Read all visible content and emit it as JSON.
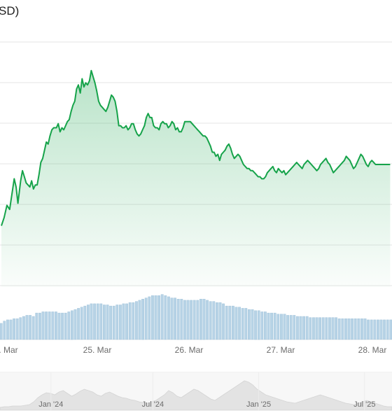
{
  "chart_data": {
    "type": "area",
    "title": "SD)",
    "accent_color": "#16a34a",
    "volume_color": "#b7d3e6",
    "navigator_color": "#e3e3e3",
    "grid": true,
    "x_tick_labels": [
      ". Mar",
      "25. Mar",
      "26. Mar",
      "27. Mar",
      "28. Mar"
    ],
    "x_tick_days": [
      0,
      1,
      2,
      3,
      4
    ],
    "y_range": [
      40,
      160
    ],
    "series": [
      {
        "x": [
          0.0,
          0.03,
          0.06,
          0.09,
          0.12,
          0.14,
          0.16,
          0.18,
          0.21,
          0.23,
          0.25,
          0.27,
          0.29,
          0.31,
          0.33,
          0.35,
          0.37,
          0.39,
          0.41,
          0.43,
          0.45,
          0.47,
          0.49,
          0.51,
          0.53,
          0.55,
          0.57,
          0.6,
          0.62,
          0.64,
          0.66,
          0.68,
          0.7,
          0.72,
          0.74,
          0.76,
          0.78,
          0.8,
          0.82,
          0.84,
          0.86,
          0.88,
          0.9,
          0.92,
          0.94,
          0.96,
          0.98,
          1.0,
          1.02,
          1.04,
          1.06,
          1.08,
          1.1,
          1.12,
          1.14,
          1.16,
          1.18,
          1.2,
          1.22,
          1.24,
          1.26,
          1.28,
          1.3,
          1.32,
          1.34,
          1.36,
          1.38,
          1.4,
          1.42,
          1.44,
          1.46,
          1.48,
          1.5,
          1.52,
          1.54,
          1.56,
          1.58,
          1.6,
          1.62,
          1.64,
          1.66,
          1.68,
          1.7,
          1.72,
          1.74,
          1.76,
          1.78,
          1.8,
          1.82,
          1.84,
          1.86,
          1.88,
          1.9,
          1.92,
          1.94,
          1.96,
          1.98,
          2.0,
          2.02,
          2.04,
          2.06,
          2.08,
          2.1,
          2.12,
          2.14,
          2.16,
          2.18,
          2.2,
          2.22,
          2.24,
          2.26,
          2.28,
          2.3,
          2.32,
          2.34,
          2.36,
          2.38,
          2.4,
          2.42,
          2.44,
          2.46,
          2.48,
          2.5,
          2.52,
          2.54,
          2.56,
          2.58,
          2.6,
          2.62,
          2.64,
          2.66,
          2.68,
          2.7,
          2.72,
          2.74,
          2.76,
          2.78,
          2.8,
          2.82,
          2.84,
          2.86,
          2.88,
          2.9,
          2.92,
          2.94,
          2.96,
          2.98,
          3.0,
          3.02,
          3.04,
          3.06,
          3.08,
          3.1,
          3.12,
          3.14,
          3.16,
          3.18,
          3.2,
          3.22,
          3.24,
          3.26,
          3.28,
          3.3,
          3.32,
          3.34,
          3.36,
          3.38,
          3.4,
          3.42,
          3.44,
          3.46,
          3.48,
          3.5,
          3.52,
          3.54,
          3.56,
          3.58,
          3.6,
          3.62,
          3.64,
          3.66,
          3.68,
          3.7,
          3.72,
          3.74,
          3.76,
          3.78,
          3.8,
          3.82,
          3.84,
          3.86,
          3.88,
          3.9,
          3.92,
          3.94,
          3.96,
          3.98,
          4.0,
          4.02,
          4.04,
          4.06,
          4.08,
          4.1,
          4.12,
          4.14,
          4.16,
          4.18,
          4.2,
          4.22,
          4.24
        ],
        "y": [
          70,
          74,
          80,
          78,
          87,
          93,
          89,
          81,
          92,
          97,
          94,
          91,
          90,
          89,
          92,
          88,
          90,
          90,
          95,
          101,
          103,
          107,
          111,
          110,
          114,
          117,
          118,
          118,
          120,
          116,
          118,
          117,
          119,
          121,
          122,
          126,
          129,
          131,
          137,
          139,
          135,
          142,
          138,
          140,
          139,
          141,
          146,
          143,
          140,
          136,
          131,
          129,
          128,
          127,
          126,
          128,
          131,
          134,
          133,
          131,
          126,
          119,
          119,
          118,
          118,
          119,
          117,
          118,
          120,
          120,
          117,
          115,
          114,
          115,
          117,
          119,
          123,
          125,
          123,
          123,
          119,
          118,
          118,
          117,
          120,
          121,
          120,
          120,
          118,
          119,
          121,
          120,
          117,
          118,
          116,
          116,
          118,
          121,
          121,
          121,
          121,
          120,
          119,
          118,
          117,
          116,
          115,
          114,
          114,
          113,
          111,
          109,
          106,
          106,
          104,
          105,
          102,
          105,
          106,
          107,
          109,
          110,
          108,
          105,
          103,
          104,
          105,
          104,
          102,
          100,
          99,
          98,
          98,
          97,
          97,
          96,
          95,
          94,
          94,
          93,
          93,
          94,
          96,
          97,
          98,
          99,
          97,
          96,
          98,
          97,
          96,
          97,
          95,
          96,
          97,
          98,
          99,
          100,
          101,
          100,
          99,
          98,
          100,
          101,
          102,
          101,
          100,
          99,
          98,
          97,
          98,
          100,
          101,
          102,
          103,
          101,
          100,
          98,
          96,
          97,
          98,
          99,
          100,
          101,
          102,
          104,
          103,
          102,
          100,
          98,
          99,
          101,
          103,
          105,
          104,
          102,
          100,
          99,
          101,
          102,
          101,
          100,
          100,
          100,
          100,
          100,
          100,
          100,
          100,
          100
        ]
      }
    ],
    "volume": [
      14,
      16,
      17,
      17,
      18,
      18,
      19,
      20,
      21,
      21,
      20,
      23,
      23,
      24,
      24,
      24,
      24,
      24,
      23,
      23,
      23,
      24,
      25,
      26,
      27,
      28,
      29,
      30,
      31,
      31,
      31,
      31,
      30,
      30,
      29,
      29,
      30,
      30,
      31,
      31,
      32,
      32,
      33,
      34,
      35,
      36,
      37,
      38,
      38,
      38,
      39,
      38,
      37,
      36,
      36,
      35,
      35,
      34,
      34,
      34,
      34,
      34,
      35,
      35,
      34,
      33,
      33,
      32,
      32,
      31,
      29,
      29,
      29,
      28,
      28,
      27,
      27,
      26,
      26,
      25,
      25,
      24,
      24,
      23,
      23,
      23,
      22,
      22,
      22,
      21,
      21,
      21,
      20,
      20,
      20,
      20,
      19,
      19,
      19,
      19,
      19,
      19,
      19,
      19,
      19,
      18,
      18,
      18,
      18,
      18,
      18,
      18,
      18,
      18,
      17,
      17,
      17,
      17,
      17,
      17,
      17,
      17,
      17,
      17
    ],
    "navigator": {
      "tick_labels": [
        "Jan '24",
        "Jul '24",
        "Jan '25",
        "Jul '25"
      ],
      "tick_fraction": [
        0.13,
        0.39,
        0.66,
        0.93
      ],
      "values": [
        4,
        5,
        5,
        6,
        6,
        6,
        7,
        8,
        12,
        18,
        22,
        25,
        24,
        22,
        26,
        28,
        24,
        20,
        23,
        27,
        30,
        28,
        26,
        22,
        20,
        24,
        26,
        23,
        20,
        18,
        17,
        15,
        14,
        12,
        11,
        10,
        12,
        14,
        18,
        22,
        28,
        25,
        20,
        18,
        22,
        26,
        30,
        28,
        24,
        20,
        16,
        14,
        18,
        22,
        26,
        30,
        34,
        38,
        42,
        40,
        36,
        30,
        26,
        22,
        20,
        18,
        16,
        14,
        12,
        11,
        10,
        12,
        14,
        16,
        18,
        20,
        22,
        20,
        18,
        16,
        14,
        12,
        10,
        9,
        8,
        10,
        12,
        14,
        12,
        10,
        8,
        6,
        5,
        5
      ]
    }
  }
}
